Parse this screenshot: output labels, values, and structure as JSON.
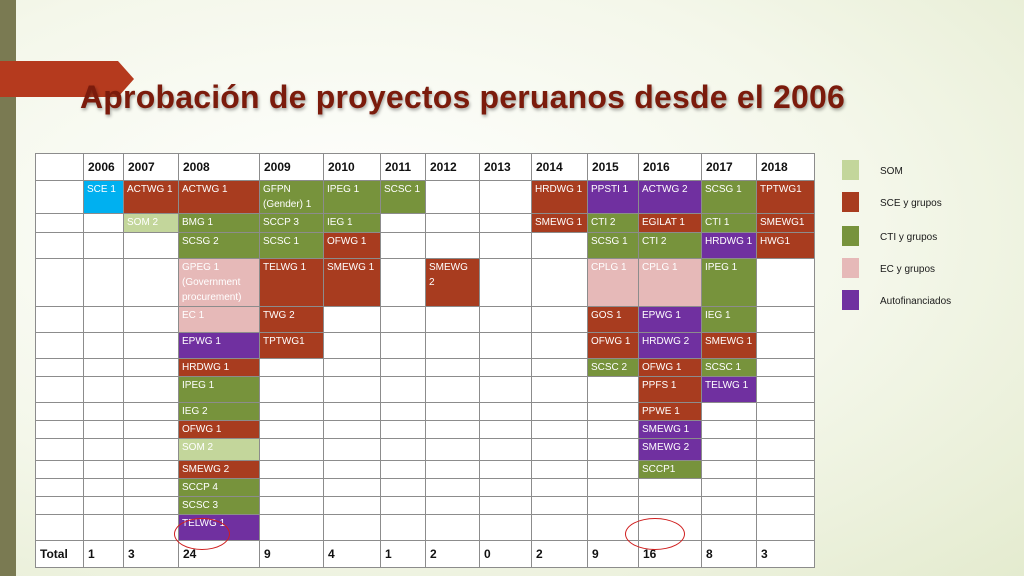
{
  "title": "Aprobación de proyectos peruanos desde el 2006",
  "colors": {
    "SOM": "#c3d69b",
    "SCE": "#a83c1f",
    "CTI": "#77933c",
    "EC": "#e6b9b8",
    "AUT": "#7030a0",
    "BLUE": "#00b0f0"
  },
  "table": {
    "years": [
      "2006",
      "2007",
      "2008",
      "2009",
      "2010",
      "2011",
      "2012",
      "2013",
      "2014",
      "2015",
      "2016",
      "2017",
      "2018"
    ],
    "rows": [
      [
        {
          "t": "SCE 1",
          "c": "BLUE"
        },
        {
          "t": "ACTWG 1",
          "c": "SCE"
        },
        {
          "t": "ACTWG 1",
          "c": "SCE"
        },
        {
          "t": "GFPN (Gender) 1",
          "c": "CTI"
        },
        {
          "t": "IPEG 1",
          "c": "CTI"
        },
        {
          "t": "SCSC 1",
          "c": "CTI"
        },
        null,
        null,
        {
          "t": "HRDWG 1",
          "c": "SCE"
        },
        {
          "t": "PPSTI 1",
          "c": "AUT"
        },
        {
          "t": "ACTWG 2",
          "c": "AUT"
        },
        {
          "t": "SCSG 1",
          "c": "CTI"
        },
        {
          "t": "TPTWG1",
          "c": "SCE"
        }
      ],
      [
        null,
        {
          "t": "SOM 2",
          "c": "SOM"
        },
        {
          "t": "BMG 1",
          "c": "CTI"
        },
        {
          "t": "SCCP 3",
          "c": "CTI"
        },
        {
          "t": "IEG 1",
          "c": "CTI"
        },
        null,
        null,
        null,
        {
          "t": "SMEWG 1",
          "c": "SCE"
        },
        {
          "t": "CTI 2",
          "c": "CTI"
        },
        {
          "t": "EGILAT 1",
          "c": "SCE"
        },
        {
          "t": "CTI 1",
          "c": "CTI"
        },
        {
          "t": "SMEWG1",
          "c": "SCE"
        }
      ],
      [
        null,
        null,
        {
          "t": "SCSG 2",
          "c": "CTI"
        },
        {
          "t": "SCSC 1",
          "c": "CTI"
        },
        {
          "t": "OFWG 1",
          "c": "SCE"
        },
        null,
        null,
        null,
        null,
        {
          "t": "SCSG 1",
          "c": "CTI"
        },
        {
          "t": "CTI 2",
          "c": "CTI"
        },
        {
          "t": "HRDWG 1",
          "c": "AUT"
        },
        {
          "t": "HWG1",
          "c": "SCE"
        }
      ],
      [
        null,
        null,
        {
          "t": "GPEG 1 (Government procurement)",
          "c": "EC"
        },
        {
          "t": "TELWG 1",
          "c": "SCE"
        },
        {
          "t": "SMEWG 1",
          "c": "SCE"
        },
        null,
        {
          "t": "SMEWG 2",
          "c": "SCE"
        },
        null,
        null,
        {
          "t": "CPLG 1",
          "c": "EC"
        },
        {
          "t": "CPLG 1",
          "c": "EC"
        },
        {
          "t": "IPEG 1",
          "c": "CTI"
        },
        null
      ],
      [
        null,
        null,
        {
          "t": "EC 1",
          "c": "EC"
        },
        {
          "t": "TWG 2",
          "c": "SCE"
        },
        null,
        null,
        null,
        null,
        null,
        {
          "t": "GOS 1",
          "c": "SCE"
        },
        {
          "t": "EPWG 1",
          "c": "AUT"
        },
        {
          "t": "IEG 1",
          "c": "CTI"
        },
        null
      ],
      [
        null,
        null,
        {
          "t": "EPWG 1",
          "c": "AUT"
        },
        {
          "t": " TPTWG1",
          "c": "SCE"
        },
        null,
        null,
        null,
        null,
        null,
        {
          "t": "OFWG 1",
          "c": "SCE"
        },
        {
          "t": "HRDWG 2",
          "c": "AUT"
        },
        {
          "t": "SMEWG 1",
          "c": "SCE"
        },
        null
      ],
      [
        null,
        null,
        {
          "t": "HRDWG 1",
          "c": "SCE"
        },
        null,
        null,
        null,
        null,
        null,
        null,
        {
          "t": "SCSC 2",
          "c": "CTI"
        },
        {
          "t": "OFWG 1",
          "c": "SCE"
        },
        {
          "t": "SCSC 1",
          "c": "CTI"
        },
        null
      ],
      [
        null,
        null,
        {
          "t": "IPEG 1",
          "c": "CTI"
        },
        null,
        null,
        null,
        null,
        null,
        null,
        null,
        {
          "t": "PPFS 1",
          "c": "SCE"
        },
        {
          "t": "TELWG 1",
          "c": "AUT"
        },
        null
      ],
      [
        null,
        null,
        {
          "t": "IEG 2",
          "c": "CTI"
        },
        null,
        null,
        null,
        null,
        null,
        null,
        null,
        {
          "t": "PPWE 1",
          "c": "SCE"
        },
        null,
        null
      ],
      [
        null,
        null,
        {
          "t": "OFWG 1",
          "c": "SCE"
        },
        null,
        null,
        null,
        null,
        null,
        null,
        null,
        {
          "t": "SMEWG 1",
          "c": "AUT"
        },
        null,
        null
      ],
      [
        null,
        null,
        {
          "t": "SOM 2",
          "c": "SOM"
        },
        null,
        null,
        null,
        null,
        null,
        null,
        null,
        {
          "t": "SMEWG 2",
          "c": "AUT"
        },
        null,
        null
      ],
      [
        null,
        null,
        {
          "t": "SMEWG 2",
          "c": "SCE"
        },
        null,
        null,
        null,
        null,
        null,
        null,
        null,
        {
          "t": " SCCP1",
          "c": "CTI"
        },
        null,
        null
      ],
      [
        null,
        null,
        {
          "t": "SCCP 4",
          "c": "CTI"
        },
        null,
        null,
        null,
        null,
        null,
        null,
        null,
        null,
        null,
        null
      ],
      [
        null,
        null,
        {
          "t": "SCSC 3",
          "c": "CTI"
        },
        null,
        null,
        null,
        null,
        null,
        null,
        null,
        null,
        null,
        null
      ],
      [
        null,
        null,
        {
          "t": "TELWG 1",
          "c": "AUT"
        },
        null,
        null,
        null,
        null,
        null,
        null,
        null,
        null,
        null,
        null
      ]
    ],
    "total_label": "Total",
    "totals": [
      "1",
      "3",
      "24",
      "9",
      "4",
      "1",
      "2",
      "0",
      "2",
      "9",
      "16",
      "8",
      "3"
    ]
  },
  "legend": [
    {
      "label": "SOM",
      "c": "SOM"
    },
    {
      "label": "SCE y grupos",
      "c": "SCE"
    },
    {
      "label": "CTI y grupos",
      "c": "CTI"
    },
    {
      "label": "EC y grupos",
      "c": "EC"
    },
    {
      "label": "Autofinanciados",
      "c": "AUT"
    }
  ]
}
